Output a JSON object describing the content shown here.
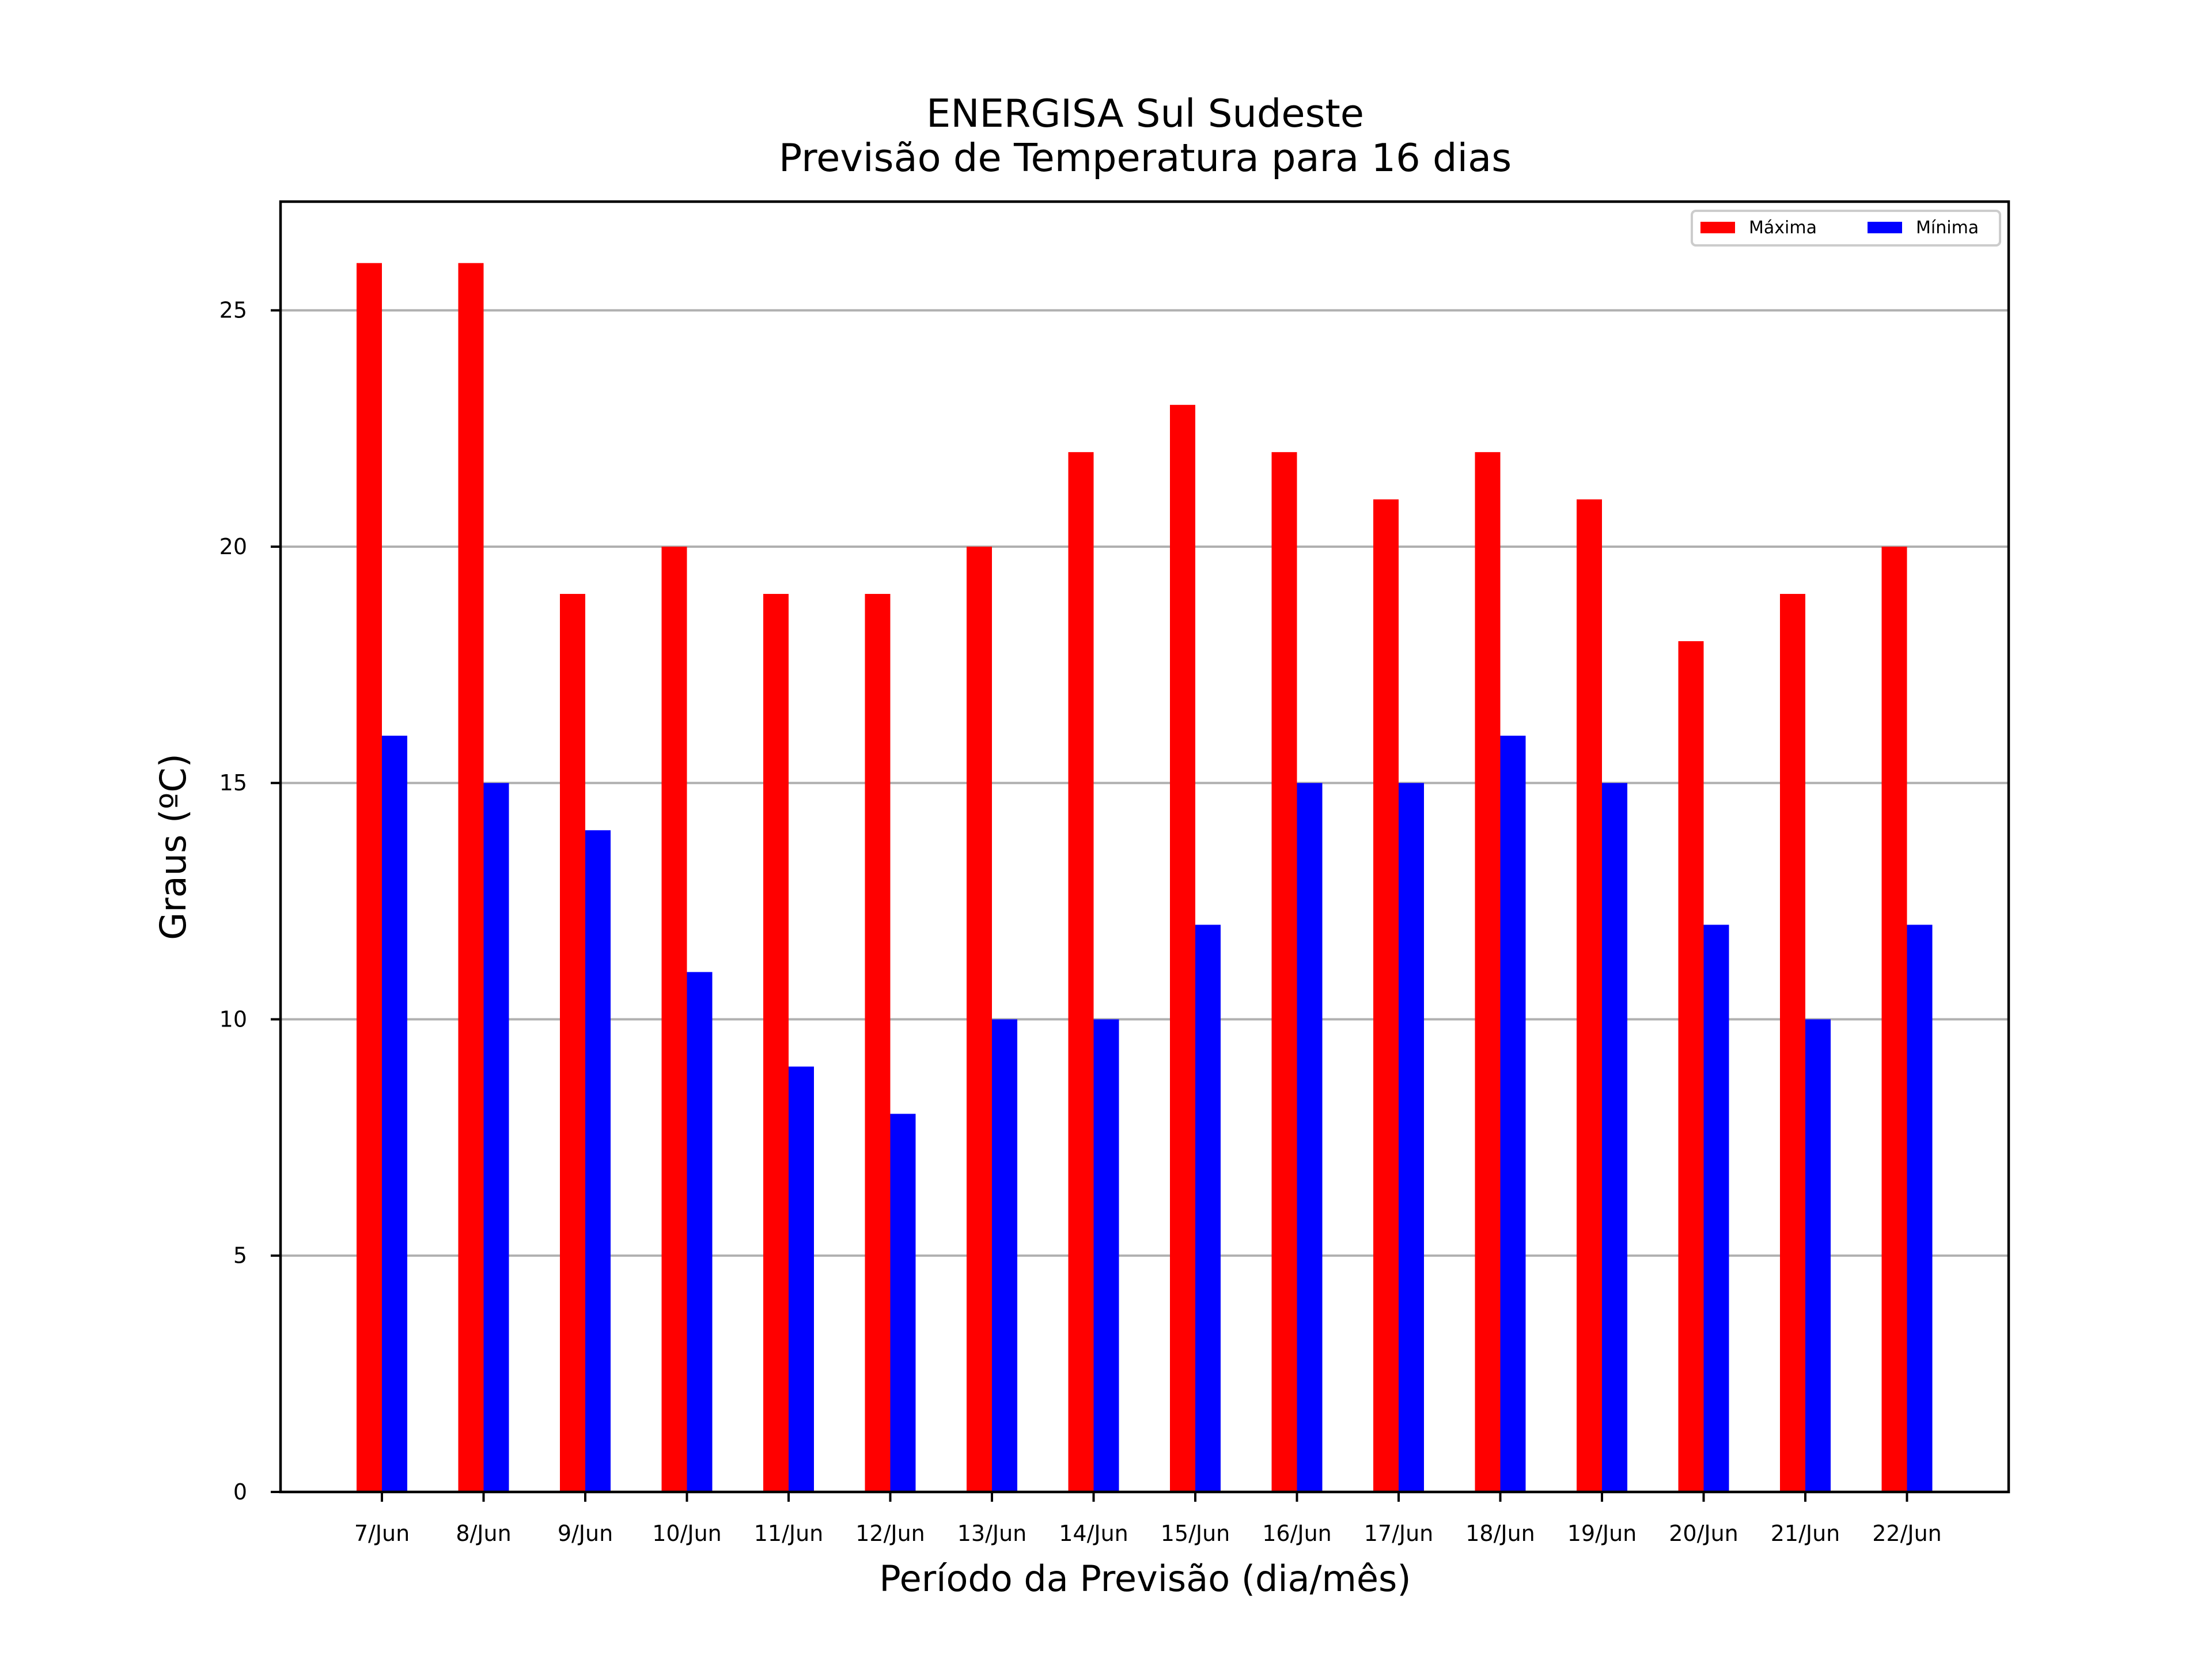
{
  "chart_data": {
    "type": "bar",
    "title": "ENERGISA Sul Sudeste",
    "subtitle": "Previsão de Temperatura para 16 dias",
    "xlabel": "Período da Previsão (dia/mês)",
    "ylabel": "Graus (ºC)",
    "categories": [
      "7/Jun",
      "8/Jun",
      "9/Jun",
      "10/Jun",
      "11/Jun",
      "12/Jun",
      "13/Jun",
      "14/Jun",
      "15/Jun",
      "16/Jun",
      "17/Jun",
      "18/Jun",
      "19/Jun",
      "20/Jun",
      "21/Jun",
      "22/Jun"
    ],
    "series": [
      {
        "name": "Máxima",
        "color": "#ff0000",
        "values": [
          26,
          26,
          19,
          20,
          19,
          19,
          20,
          22,
          23,
          22,
          21,
          22,
          21,
          18,
          19,
          20
        ]
      },
      {
        "name": "Mínima",
        "color": "#0000ff",
        "values": [
          16,
          15,
          14,
          11,
          9,
          8,
          10,
          10,
          12,
          15,
          15,
          16,
          15,
          12,
          10,
          12
        ]
      }
    ],
    "yticks": [
      0,
      5,
      10,
      15,
      20,
      25
    ],
    "ylim": [
      0,
      27.3
    ],
    "grid": "horizontal",
    "legend_position": "top-right"
  }
}
